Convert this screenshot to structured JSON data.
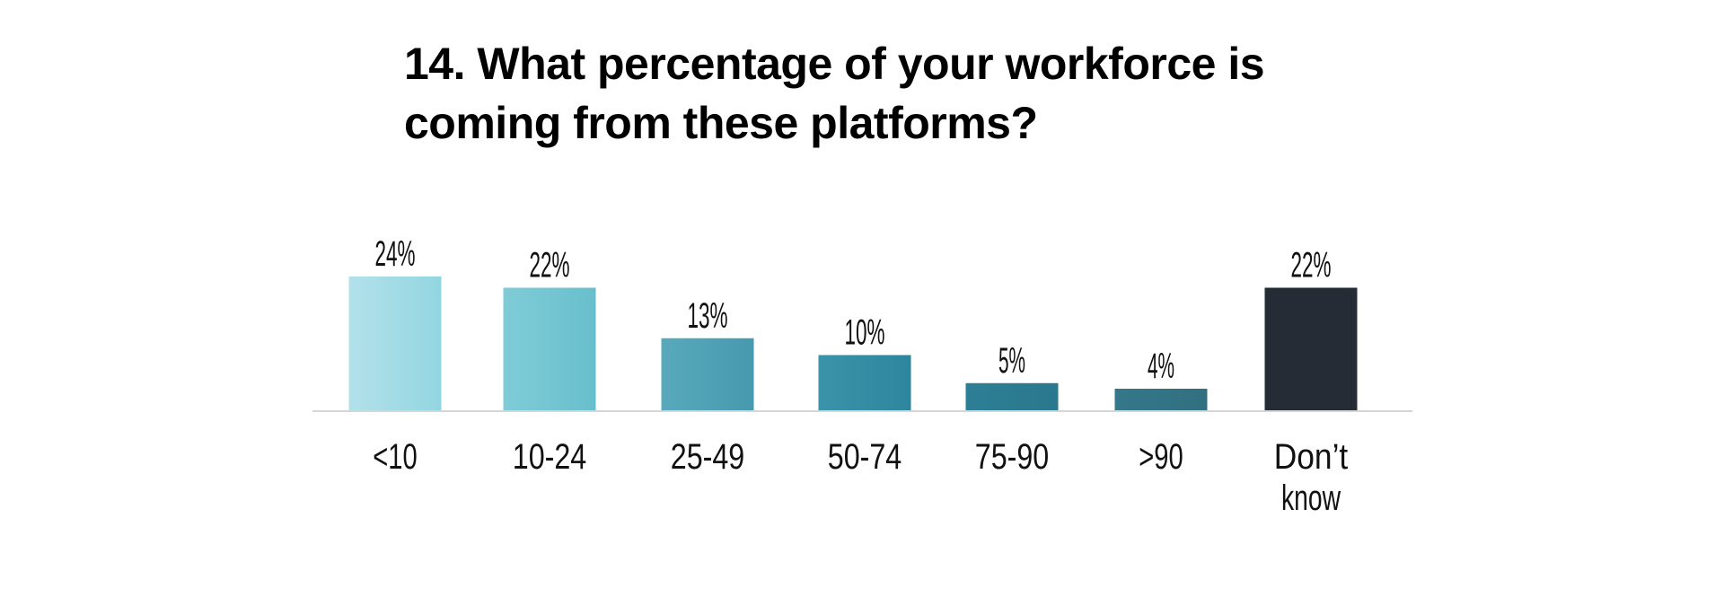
{
  "title_lines": [
    "14. What percentage of your workforce is",
    "coming from these platforms?"
  ],
  "chart_data": {
    "type": "bar",
    "title": "14. What percentage of your workforce is coming from these platforms?",
    "xlabel": "",
    "ylabel": "",
    "ylim": [
      0,
      24
    ],
    "grid": false,
    "categories": [
      "<10",
      "10-24",
      "25-49",
      "50-74",
      "75-90",
      ">90",
      "Don’t know"
    ],
    "values": [
      24,
      22,
      13,
      10,
      5,
      4,
      22
    ],
    "value_labels": [
      "24%",
      "22%",
      "13%",
      "10%",
      "5%",
      "4%",
      "22%"
    ],
    "colors": [
      [
        "#b3e1ea",
        "#92d6e1"
      ],
      [
        "#7fccd7",
        "#68bfcc"
      ],
      [
        "#57a9bb",
        "#4799ae"
      ],
      [
        "#3b93aa",
        "#2e869e"
      ],
      [
        "#2d7f95",
        "#2a788d"
      ],
      [
        "#34788a",
        "#316f80"
      ],
      [
        "#252c35",
        "#252c35"
      ]
    ]
  }
}
